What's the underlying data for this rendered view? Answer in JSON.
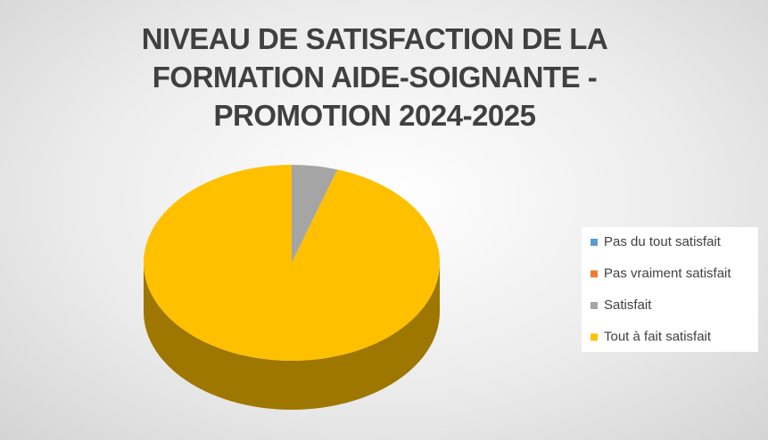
{
  "chart_data": {
    "type": "pie",
    "title": "NIVEAU DE SATISFACTION DE LA FORMATION AIDE-SOIGNANTE - PROMOTION 2024-2025",
    "categories": [
      "Pas du tout satisfait",
      "Pas vraiment satisfait",
      "Satisfait",
      "Tout à fait satisfait"
    ],
    "values": [
      0,
      0,
      5,
      95
    ],
    "colors": [
      "#5b9bd5",
      "#ed7d31",
      "#a5a5a5",
      "#ffc000"
    ],
    "legend": "right"
  }
}
